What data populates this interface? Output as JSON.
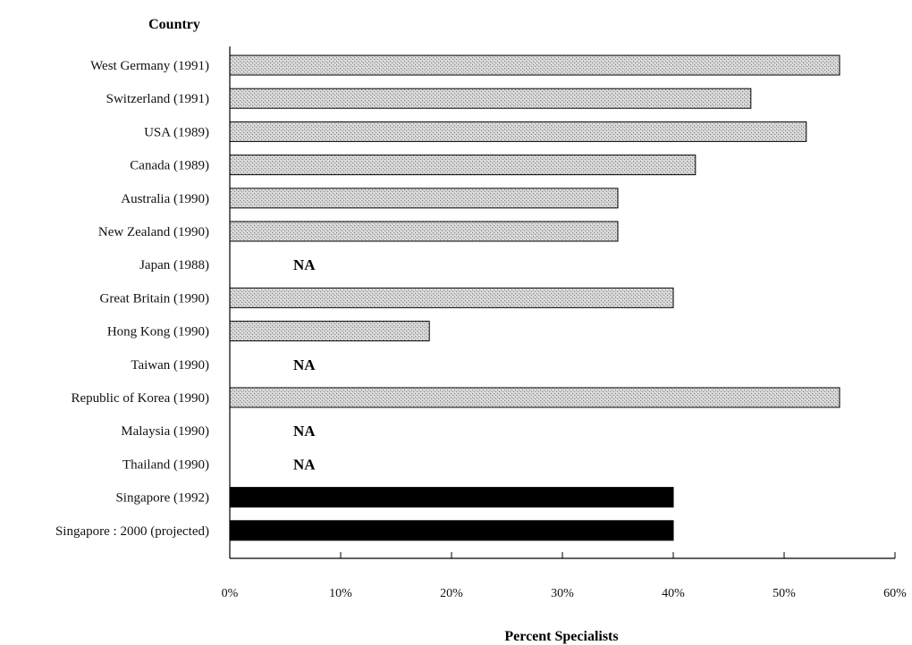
{
  "chart_data": {
    "type": "bar",
    "orientation": "horizontal",
    "ylabel": "Country",
    "xlabel": "Percent Specialists",
    "xlim": [
      0,
      60
    ],
    "x_ticks": [
      "0%",
      "10%",
      "20%",
      "30%",
      "40%",
      "50%",
      "60%"
    ],
    "grid": false,
    "legend": "none",
    "na_label": "NA",
    "colors": {
      "actual": "#c8c8c8",
      "singapore": "#000000"
    },
    "categories": [
      "West Germany (1991)",
      "Switzerland (1991)",
      "USA (1989)",
      "Canada (1989)",
      "Australia (1990)",
      "New Zealand (1990)",
      "Japan (1988)",
      "Great Britain (1990)",
      "Hong Kong (1990)",
      "Taiwan (1990)",
      "Republic of Korea (1990)",
      "Malaysia (1990)",
      "Thailand (1990)",
      "Singapore (1992)",
      "Singapore : 2000 (projected)"
    ],
    "values": [
      55,
      47,
      52,
      42,
      35,
      35,
      null,
      40,
      18,
      null,
      55,
      null,
      null,
      40,
      40
    ],
    "bar_style": [
      "shaded",
      "shaded",
      "shaded",
      "shaded",
      "shaded",
      "shaded",
      "na",
      "shaded",
      "shaded",
      "na",
      "shaded",
      "na",
      "na",
      "solid",
      "solid"
    ]
  }
}
